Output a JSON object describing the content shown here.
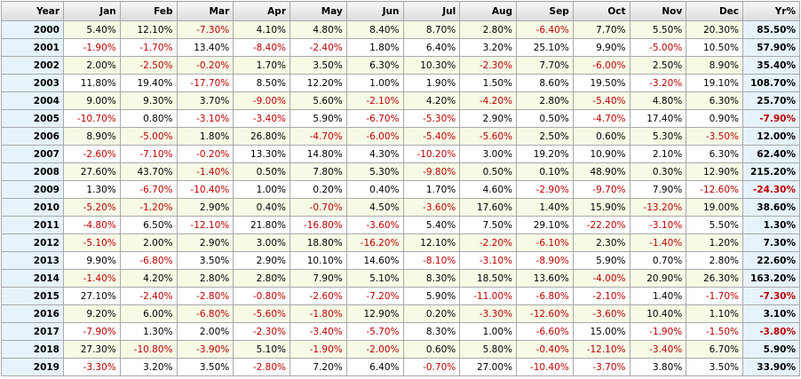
{
  "table": {
    "header": [
      "Year",
      "Jan",
      "Feb",
      "Mar",
      "Apr",
      "May",
      "Jun",
      "Jul",
      "Aug",
      "Sep",
      "Oct",
      "Nov",
      "Dec",
      "Yr%"
    ],
    "rows": [
      [
        "2000",
        "5.40%",
        "12.10%",
        "-7.30%",
        "4.10%",
        "4.80%",
        "8.40%",
        "8.70%",
        "2.80%",
        "-6.40%",
        "7.70%",
        "5.50%",
        "20.30%",
        "85.50%"
      ],
      [
        "2001",
        "-1.90%",
        "-1.70%",
        "13.40%",
        "-8.40%",
        "-2.40%",
        "1.80%",
        "6.40%",
        "3.20%",
        "25.10%",
        "9.90%",
        "-5.00%",
        "10.50%",
        "57.90%"
      ],
      [
        "2002",
        "2.00%",
        "-2.50%",
        "-0.20%",
        "1.70%",
        "3.50%",
        "6.30%",
        "10.30%",
        "-2.30%",
        "7.70%",
        "-6.00%",
        "2.50%",
        "8.90%",
        "35.40%"
      ],
      [
        "2003",
        "11.80%",
        "19.40%",
        "-17.70%",
        "8.50%",
        "12.20%",
        "1.00%",
        "1.90%",
        "1.50%",
        "8.60%",
        "19.50%",
        "-3.20%",
        "19.10%",
        "108.70%"
      ],
      [
        "2004",
        "9.00%",
        "9.30%",
        "3.70%",
        "-9.00%",
        "5.60%",
        "-2.10%",
        "4.20%",
        "-4.20%",
        "2.80%",
        "-5.40%",
        "4.80%",
        "6.30%",
        "25.70%"
      ],
      [
        "2005",
        "-10.70%",
        "0.80%",
        "-3.10%",
        "-3.40%",
        "5.90%",
        "-6.70%",
        "-5.30%",
        "2.90%",
        "0.50%",
        "-4.70%",
        "17.40%",
        "0.90%",
        "-7.90%"
      ],
      [
        "2006",
        "8.90%",
        "-5.00%",
        "1.80%",
        "26.80%",
        "-4.70%",
        "-6.00%",
        "-5.40%",
        "-5.60%",
        "2.50%",
        "0.60%",
        "5.30%",
        "-3.50%",
        "12.00%"
      ],
      [
        "2007",
        "-2.60%",
        "-7.10%",
        "-0.20%",
        "13.30%",
        "14.80%",
        "4.30%",
        "-10.20%",
        "3.00%",
        "19.20%",
        "10.90%",
        "2.10%",
        "6.30%",
        "62.40%"
      ],
      [
        "2008",
        "27.60%",
        "43.70%",
        "-1.40%",
        "0.50%",
        "7.80%",
        "5.30%",
        "-9.80%",
        "0.50%",
        "0.10%",
        "48.90%",
        "0.30%",
        "12.90%",
        "215.20%"
      ],
      [
        "2009",
        "1.30%",
        "-6.70%",
        "-10.40%",
        "1.00%",
        "0.20%",
        "0.40%",
        "1.70%",
        "4.60%",
        "-2.90%",
        "-9.70%",
        "7.90%",
        "-12.60%",
        "-24.30%"
      ],
      [
        "2010",
        "-5.20%",
        "-1.20%",
        "2.90%",
        "0.40%",
        "-0.70%",
        "4.50%",
        "-3.60%",
        "17.60%",
        "1.40%",
        "15.90%",
        "-13.20%",
        "19.00%",
        "38.60%"
      ],
      [
        "2011",
        "-4.80%",
        "6.50%",
        "-12.10%",
        "21.80%",
        "-16.80%",
        "-3.60%",
        "5.40%",
        "7.50%",
        "29.10%",
        "-22.20%",
        "-3.10%",
        "5.50%",
        "1.30%"
      ],
      [
        "2012",
        "-5.10%",
        "2.00%",
        "2.90%",
        "3.00%",
        "18.80%",
        "-16.20%",
        "12.10%",
        "-2.20%",
        "-6.10%",
        "2.30%",
        "-1.40%",
        "1.20%",
        "7.30%"
      ],
      [
        "2013",
        "9.90%",
        "-6.80%",
        "3.50%",
        "2.90%",
        "10.10%",
        "14.60%",
        "-8.10%",
        "-3.10%",
        "-8.90%",
        "5.90%",
        "0.70%",
        "2.80%",
        "22.60%"
      ],
      [
        "2014",
        "-1.40%",
        "4.20%",
        "2.80%",
        "2.80%",
        "7.90%",
        "5.10%",
        "8.30%",
        "18.50%",
        "13.60%",
        "-4.00%",
        "20.90%",
        "26.30%",
        "163.20%"
      ],
      [
        "2015",
        "27.10%",
        "-2.40%",
        "-2.80%",
        "-0.80%",
        "-2.60%",
        "-7.20%",
        "5.90%",
        "-11.00%",
        "-6.80%",
        "-2.10%",
        "1.40%",
        "-1.70%",
        "-7.30%"
      ],
      [
        "2016",
        "9.20%",
        "6.00%",
        "-6.80%",
        "-5.60%",
        "-1.80%",
        "12.90%",
        "0.20%",
        "-3.30%",
        "-12.60%",
        "-3.60%",
        "10.40%",
        "1.10%",
        "3.10%"
      ],
      [
        "2017",
        "-7.90%",
        "1.30%",
        "2.00%",
        "-2.30%",
        "-3.40%",
        "-5.70%",
        "8.30%",
        "1.00%",
        "-6.60%",
        "15.00%",
        "-1.90%",
        "-1.50%",
        "-3.80%"
      ],
      [
        "2018",
        "27.30%",
        "-10.80%",
        "-3.90%",
        "5.10%",
        "-1.90%",
        "-2.00%",
        "0.60%",
        "5.80%",
        "-0.40%",
        "-12.10%",
        "-3.40%",
        "6.70%",
        "5.90%"
      ],
      [
        "2019",
        "-3.30%",
        "3.20%",
        "3.50%",
        "-2.80%",
        "7.20%",
        "6.40%",
        "-0.70%",
        "27.00%",
        "-10.40%",
        "-3.70%",
        "3.80%",
        "3.50%",
        "33.90%"
      ]
    ]
  }
}
